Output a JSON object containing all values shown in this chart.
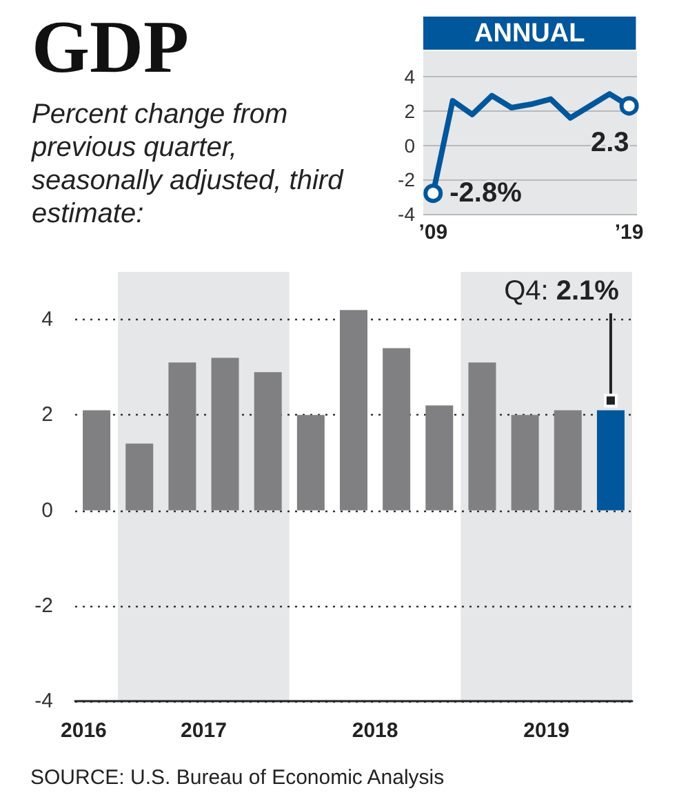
{
  "chart_data": [
    {
      "type": "bar",
      "title": "GDP",
      "subtitle": "Percent change from previous quarter, seasonally adjusted, third estimate:",
      "x": [
        2016.375,
        2016.625,
        2016.875,
        2017.125,
        2017.375,
        2017.625,
        2017.875,
        2018.125,
        2018.375,
        2018.625,
        2018.875,
        2019.125,
        2019.375
      ],
      "values": [
        2.1,
        1.4,
        3.1,
        3.2,
        2.9,
        2.0,
        4.2,
        3.4,
        2.2,
        3.1,
        2.0,
        2.1,
        2.1
      ],
      "colors": [
        "#808083",
        "#808083",
        "#808083",
        "#808083",
        "#808083",
        "#808083",
        "#808083",
        "#808083",
        "#808083",
        "#808083",
        "#808083",
        "#808083",
        "#00579b"
      ],
      "xlim": [
        2016.25,
        2019.5
      ],
      "xticks": [
        {
          "value": 2016.3,
          "label": "2016"
        },
        2017,
        2018,
        2019
      ],
      "ylim": [
        -4,
        5
      ],
      "yticks": [
        -4,
        -2,
        0,
        2,
        4
      ],
      "grid": "y",
      "bands": [
        {
          "axis": "x",
          "from": 2016.5,
          "to": 2017.5,
          "color": "#e6e7e8"
        },
        {
          "axis": "x",
          "from": 2018.5,
          "to": 2019.5,
          "color": "#e6e7e8"
        }
      ],
      "annotations": [
        "Q4: 2.1%",
        "SOURCE: U.S. Bureau of Economic Analysis"
      ]
    },
    {
      "type": "line",
      "title": "ANNUAL",
      "x": [
        2009,
        2010,
        2011,
        2012,
        2013,
        2014,
        2015,
        2016,
        2017,
        2018,
        2019
      ],
      "values": [
        -2.8,
        2.6,
        1.8,
        2.9,
        2.2,
        2.4,
        2.7,
        1.6,
        2.3,
        3.0,
        2.3
      ],
      "value_labels": [
        "-2.8%",
        null,
        null,
        null,
        null,
        null,
        null,
        null,
        null,
        null,
        "2.3"
      ],
      "color": "#00579b",
      "xlim": [
        2008.5,
        2019.4
      ],
      "xticks": [
        {
          "value": 2009,
          "label": "’09"
        },
        {
          "value": 2019,
          "label": "’19"
        }
      ],
      "ylim": [
        -4,
        5.5
      ],
      "yticks": [
        -4,
        -2,
        0,
        2,
        4
      ],
      "grid": "y"
    }
  ]
}
